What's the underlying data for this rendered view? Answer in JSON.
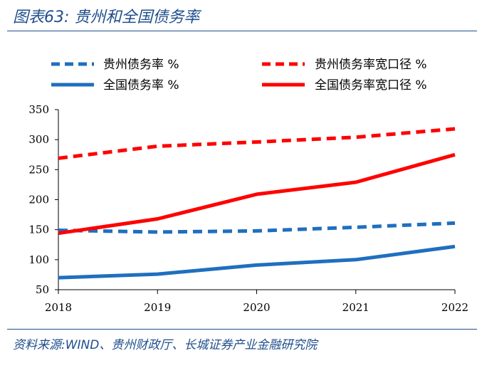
{
  "header": {
    "title": "图表63:  贵州和全国债务率"
  },
  "footer": {
    "source": "资料来源:WIND、贵州财政厅、长城证券产业金融研究院"
  },
  "colors": {
    "accent": "#1f4e8c",
    "blue": "#1f6fbf",
    "red": "#ff0000"
  },
  "chart_data": {
    "type": "line",
    "title": "贵州和全国债务率",
    "xlabel": "",
    "ylabel": "",
    "x": [
      "2018",
      "2019",
      "2020",
      "2021",
      "2022"
    ],
    "yticks": [
      "50",
      "100",
      "150",
      "200",
      "250",
      "300",
      "350"
    ],
    "ylim": [
      50,
      350
    ],
    "legend_position": "top",
    "series": [
      {
        "name": "贵州债务率 %",
        "style": "dashed",
        "color": "#1f6fbf",
        "values": [
          149,
          146,
          148,
          154,
          161
        ]
      },
      {
        "name": "贵州债务率宽口径 %",
        "style": "dashed",
        "color": "#ff0000",
        "values": [
          269,
          289,
          296,
          304,
          318
        ]
      },
      {
        "name": "全国债务率 %",
        "style": "solid",
        "color": "#1f6fbf",
        "values": [
          70,
          76,
          91,
          100,
          122
        ]
      },
      {
        "name": "全国债务率宽口径 %",
        "style": "solid",
        "color": "#ff0000",
        "values": [
          144,
          168,
          209,
          229,
          275
        ]
      }
    ]
  }
}
